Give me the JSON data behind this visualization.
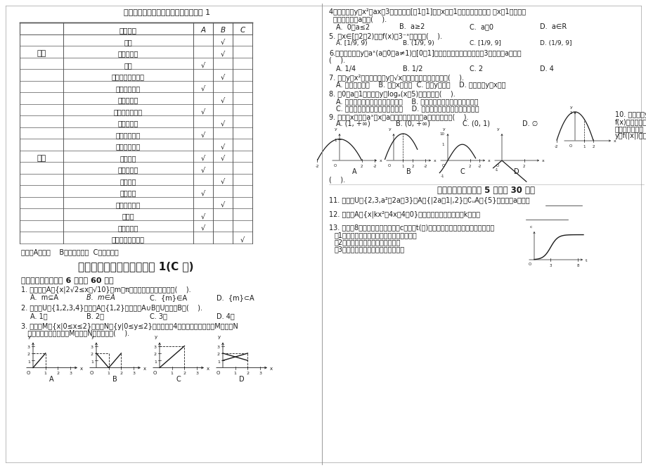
{
  "title_table": "高中数学学业评价试卷双向细目表必修 1",
  "table_headers": [
    "",
    "考试内容",
    "A",
    "B",
    "C"
  ],
  "table_rows": [
    [
      "集合",
      "子集",
      "",
      "√",
      ""
    ],
    [
      "",
      "交集与并集",
      "",
      "√",
      ""
    ],
    [
      "",
      "补集",
      "√",
      "",
      ""
    ],
    [
      "函数",
      "映射与函数的概念",
      "",
      "√",
      ""
    ],
    [
      "",
      "函数的定义域",
      "√",
      "",
      ""
    ],
    [
      "",
      "函数的值域",
      "",
      "√",
      ""
    ],
    [
      "",
      "函数的表示方法",
      "√",
      "",
      ""
    ],
    [
      "",
      "函数的图象",
      "",
      "√",
      ""
    ],
    [
      "",
      "函数的单调性",
      "√",
      "",
      ""
    ],
    [
      "",
      "函数的奇偶性",
      "",
      "√",
      ""
    ],
    [
      "",
      "指数函数",
      "√",
      "√",
      ""
    ],
    [
      "",
      "指数与对数",
      "√",
      "",
      ""
    ],
    [
      "",
      "换底公式",
      "",
      "√",
      ""
    ],
    [
      "",
      "对数函数",
      "√",
      "",
      ""
    ],
    [
      "",
      "函数图象变换",
      "",
      "√",
      ""
    ],
    [
      "",
      "幂函数",
      "√",
      "",
      ""
    ],
    [
      "",
      "函数与方程",
      "√",
      "",
      ""
    ],
    [
      "",
      "函数模型及其应用",
      "",
      "",
      "√"
    ]
  ],
  "note": "说明：A：了解    B：理解与掌握  C：综合运用",
  "exam_title": "高中数学学业评价试卷必修 1(C 卷)",
  "section1_title": "一、选择题（每小题 6 分，共 60 分）",
  "section2_title": "二、填空题（每小题 5 分，共 30 分）",
  "bg_color": "#ffffff",
  "text_color": "#1a1a1a",
  "table_line_color": "#555555"
}
